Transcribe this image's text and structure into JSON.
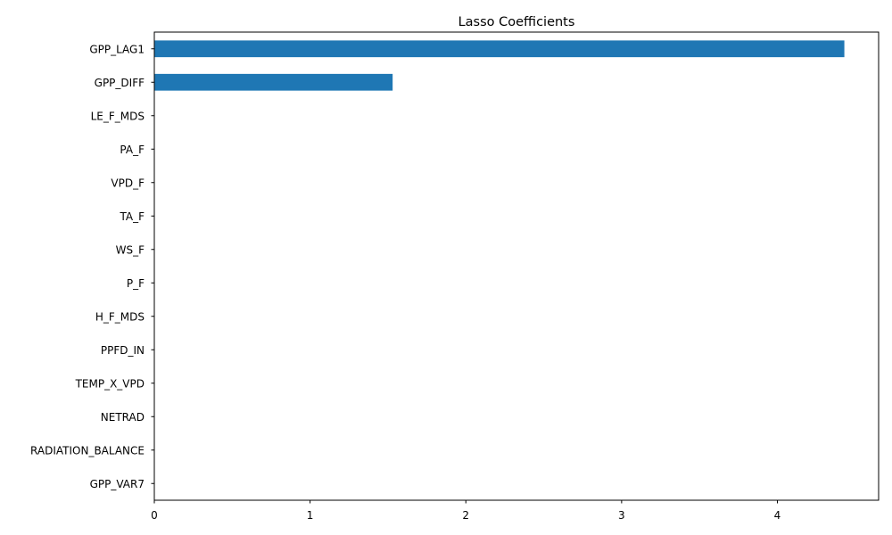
{
  "chart_data": {
    "type": "bar",
    "orientation": "horizontal",
    "title": "Lasso Coefficients",
    "xlabel": "",
    "ylabel": "",
    "categories": [
      "GPP_LAG1",
      "GPP_DIFF",
      "LE_F_MDS",
      "PA_F",
      "VPD_F",
      "TA_F",
      "WS_F",
      "P_F",
      "H_F_MDS",
      "PPFD_IN",
      "TEMP_X_VPD",
      "NETRAD",
      "RADIATION_BALANCE",
      "GPP_VAR7"
    ],
    "values": [
      4.43,
      1.53,
      0,
      0,
      0,
      0,
      0,
      0,
      0,
      0,
      0,
      0,
      0,
      0
    ],
    "xlim": [
      0,
      4.65
    ],
    "xticks": [
      0,
      1,
      2,
      3,
      4
    ],
    "xtick_labels": [
      "0",
      "1",
      "2",
      "3",
      "4"
    ],
    "bar_color": "#1f77b4",
    "grid": false,
    "legend": "none"
  }
}
